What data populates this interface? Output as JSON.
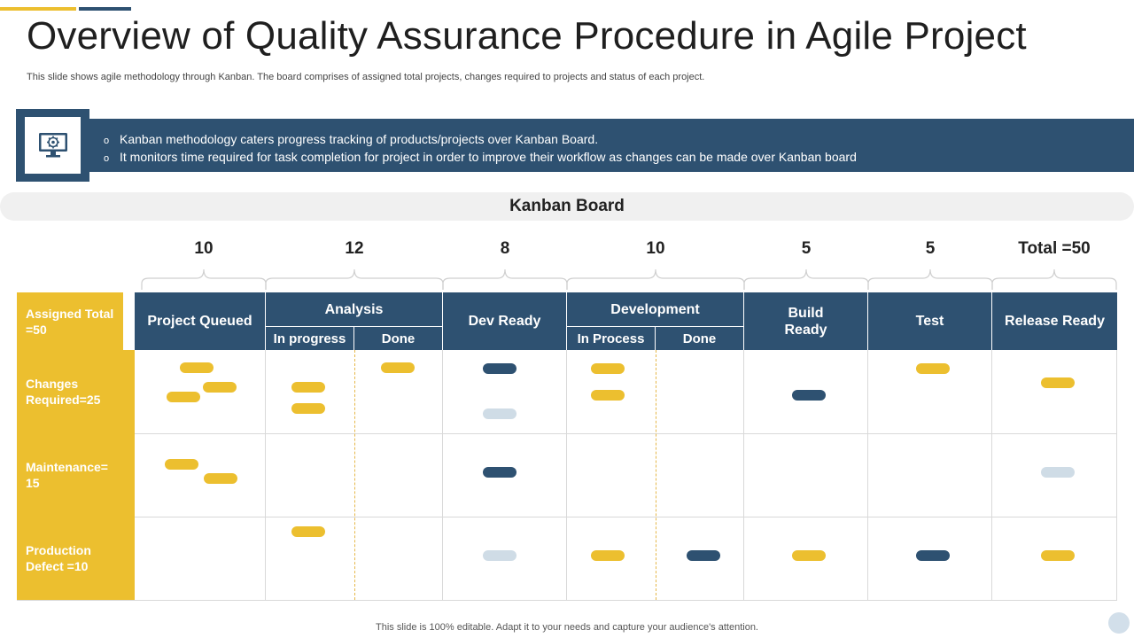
{
  "title": "Overview of Quality Assurance Procedure in Agile Project",
  "subtitle": "This slide shows agile methodology through Kanban. The board comprises of assigned total projects, changes required to projects and status of each project.",
  "info": {
    "icon": "monitor-gear-icon",
    "bullet_mark": "o",
    "bullets": [
      "Kanban methodology caters progress tracking of products/projects over Kanban Board.",
      "It monitors time required for task completion for project in order to improve their workflow as changes can be made over Kanban board"
    ]
  },
  "board": {
    "title": "Kanban Board",
    "counts": [
      "10",
      "12",
      "8",
      "10",
      "5",
      "5",
      "Total =50"
    ],
    "header_row_label": "Assigned Total =50",
    "stages": [
      {
        "label": "Project Queued"
      },
      {
        "label": "Analysis",
        "subs": [
          "In progress",
          "Done"
        ]
      },
      {
        "label": "Dev Ready"
      },
      {
        "label": "Development",
        "subs": [
          "In Process",
          "Done"
        ]
      },
      {
        "label": "Build Ready"
      },
      {
        "label": "Test"
      },
      {
        "label": "Release Ready"
      }
    ],
    "rows": [
      "Changes Required=25",
      "Maintenance= 15",
      "Production Defect =10"
    ],
    "colors": {
      "yellow": "#ecbf2f",
      "navy": "#2e5171",
      "light": "#cfdce6",
      "grid": "#d9d9d9"
    }
  },
  "footer": "This slide is 100% editable. Adapt it to your needs and capture your audience's attention."
}
